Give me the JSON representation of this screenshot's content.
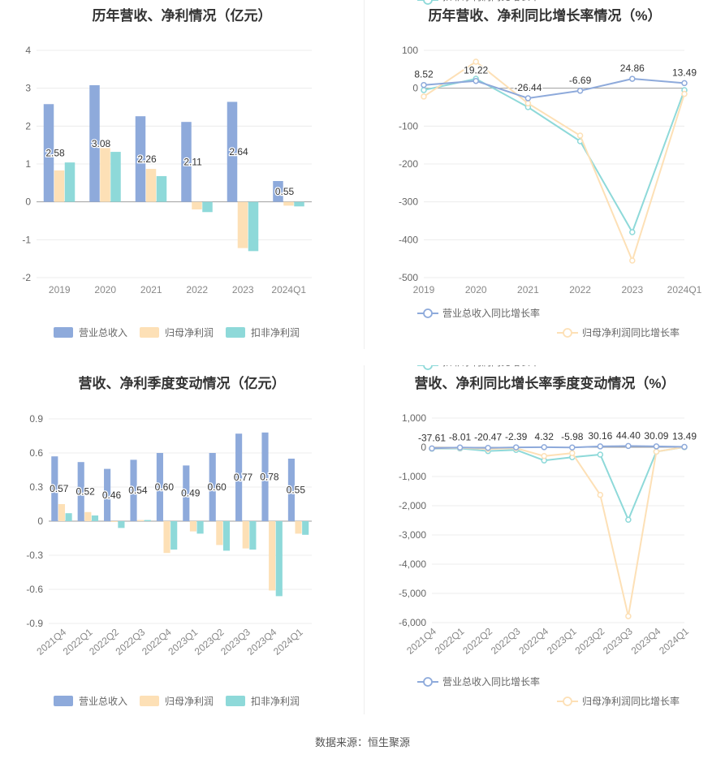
{
  "source": "数据来源：恒生聚源",
  "charts": [
    {
      "id": "annual-amount",
      "type": "bar",
      "title": "历年营收、净利情况（亿元）",
      "categories": [
        "2019",
        "2020",
        "2021",
        "2022",
        "2023",
        "2024Q1"
      ],
      "yticks": [
        "4",
        "3",
        "2",
        "1",
        "0",
        "-1",
        "-2"
      ],
      "ylim": [
        -2,
        4
      ],
      "series": [
        {
          "name": "营业总收入",
          "color": "#8eaadb",
          "values": [
            2.58,
            3.08,
            2.26,
            2.11,
            2.64,
            0.55
          ]
        },
        {
          "name": "归母净利润",
          "color": "#fde0b6",
          "values": [
            0.83,
            1.42,
            0.87,
            -0.2,
            -1.22,
            -0.1
          ]
        },
        {
          "name": "扣非净利润",
          "color": "#8ed9d9",
          "values": [
            1.04,
            1.32,
            0.68,
            -0.27,
            -1.3,
            -0.12
          ]
        }
      ],
      "data_labels": [
        "2.58",
        "3.08",
        "2.26",
        "2.11",
        "2.64",
        "0.55"
      ],
      "legend": "bottom"
    },
    {
      "id": "annual-growth",
      "type": "line",
      "title": "历年营收、净利同比增长率情况（%）",
      "categories": [
        "2019",
        "2020",
        "2021",
        "2022",
        "2023",
        "2024Q1"
      ],
      "yticks": [
        "100",
        "0",
        "-100",
        "-200",
        "-300",
        "-400",
        "-500"
      ],
      "ylim": [
        -500,
        100
      ],
      "series": [
        {
          "name": "营业总收入同比增长率",
          "color": "#8eaadb",
          "values": [
            8.52,
            19.22,
            -26.44,
            -6.69,
            24.86,
            13.49
          ]
        },
        {
          "name": "归母净利润同比增长率",
          "color": "#fde0b6",
          "values": [
            -22,
            70,
            -40,
            -125,
            -455,
            -15
          ]
        },
        {
          "name": "扣非净利润同比增长率",
          "color": "#8ed9d9",
          "values": [
            -5,
            25,
            -50,
            -140,
            -380,
            -5
          ]
        }
      ],
      "data_labels": [
        "8.52",
        "19.22",
        "-26.44",
        "-6.69",
        "24.86",
        "13.49"
      ],
      "legend": "bottom"
    },
    {
      "id": "quarterly-amount",
      "type": "bar",
      "title": "营收、净利季度变动情况（亿元）",
      "categories": [
        "2021Q4",
        "2022Q1",
        "2022Q2",
        "2022Q3",
        "2022Q4",
        "2023Q1",
        "2023Q2",
        "2023Q3",
        "2023Q4",
        "2024Q1"
      ],
      "yticks": [
        "0.9",
        "0.6",
        "0.3",
        "0",
        "-0.3",
        "-0.6",
        "-0.9"
      ],
      "ylim": [
        -0.9,
        0.9
      ],
      "series": [
        {
          "name": "营业总收入",
          "color": "#8eaadb",
          "values": [
            0.57,
            0.52,
            0.46,
            0.54,
            0.6,
            0.49,
            0.6,
            0.77,
            0.78,
            0.55
          ]
        },
        {
          "name": "归母净利润",
          "color": "#fde0b6",
          "values": [
            0.15,
            0.08,
            0.0,
            0.01,
            -0.28,
            -0.09,
            -0.21,
            -0.24,
            -0.61,
            -0.11
          ]
        },
        {
          "name": "扣非净利润",
          "color": "#8ed9d9",
          "values": [
            0.07,
            0.05,
            -0.06,
            0.01,
            -0.25,
            -0.11,
            -0.26,
            -0.25,
            -0.66,
            -0.12
          ]
        }
      ],
      "data_labels": [
        "0.57",
        "0.52",
        "0.46",
        "0.54",
        "0.60",
        "0.49",
        "0.60",
        "0.77",
        "0.78",
        "0.55"
      ],
      "legend": "bottom"
    },
    {
      "id": "quarterly-growth",
      "type": "line",
      "title": "营收、净利同比增长率季度变动情况（%）",
      "categories": [
        "2021Q4",
        "2022Q1",
        "2022Q2",
        "2022Q3",
        "2022Q4",
        "2023Q1",
        "2023Q2",
        "2023Q3",
        "2023Q4",
        "2024Q1"
      ],
      "yticks": [
        "1,000",
        "0",
        "-1,000",
        "-2,000",
        "-3,000",
        "-4,000",
        "-5,000",
        "-6,000"
      ],
      "ylim": [
        -6000,
        1000
      ],
      "series": [
        {
          "name": "营业总收入同比增长率",
          "color": "#8eaadb",
          "values": [
            -37.61,
            -8.01,
            -20.47,
            -2.39,
            4.32,
            -5.98,
            30.16,
            44.4,
            30.09,
            13.49
          ]
        },
        {
          "name": "归母净利润同比增长率",
          "color": "#fde0b6",
          "values": [
            -40,
            -20,
            -60,
            -30,
            -300,
            -200,
            -1630,
            -5780,
            -150,
            10
          ]
        },
        {
          "name": "扣非净利润同比增长率",
          "color": "#8ed9d9",
          "values": [
            -50,
            -40,
            -130,
            -90,
            -450,
            -340,
            -250,
            -2480,
            -150,
            5
          ]
        }
      ],
      "data_labels": [
        "-37.61",
        "-8.01",
        "-20.47",
        "-2.39",
        "4.32",
        "-5.98",
        "30.16",
        "44.40",
        "30.09",
        "13.49"
      ],
      "legend": "bottom"
    }
  ]
}
